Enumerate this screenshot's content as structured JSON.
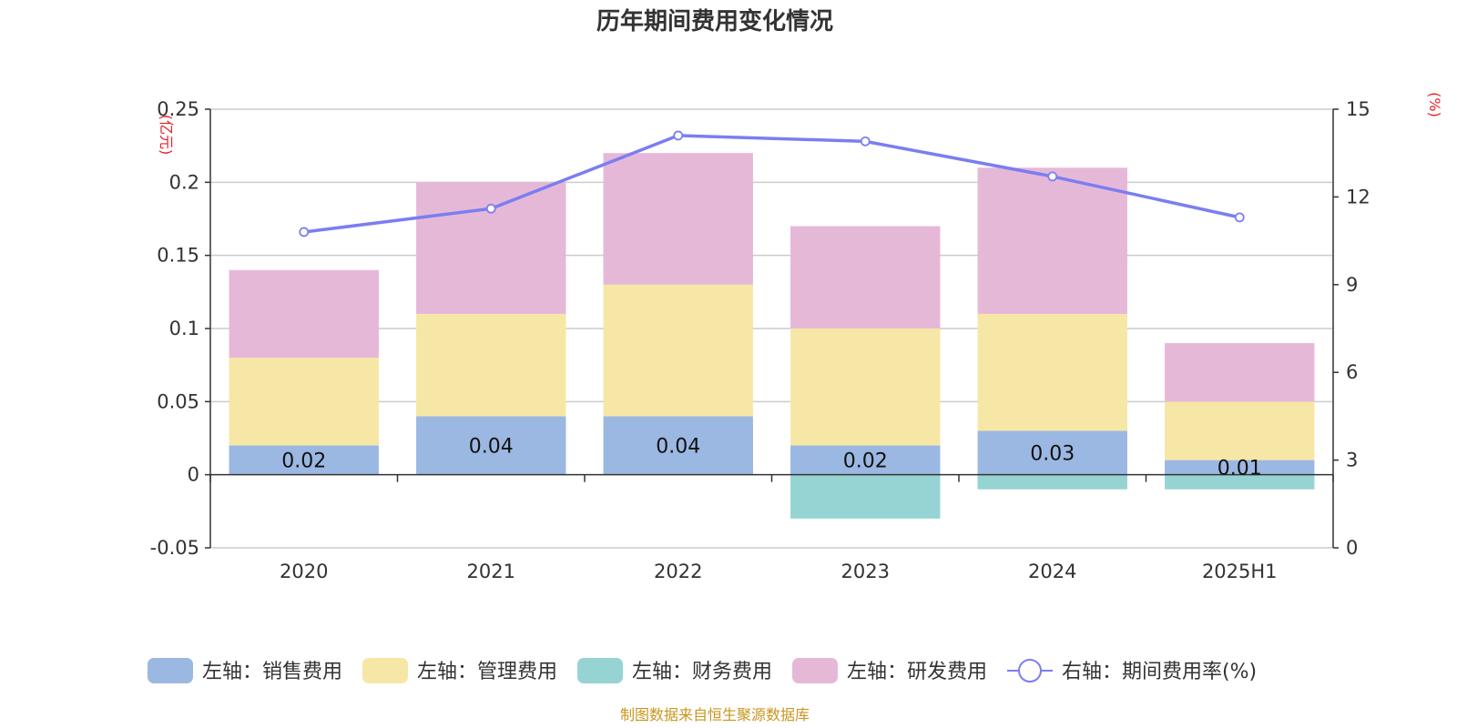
{
  "chart_data": {
    "type": "bar",
    "title": "历年期间费用变化情况",
    "left_axis_unit": "(亿元)",
    "right_axis_unit": "(%)",
    "categories": [
      "2020",
      "2021",
      "2022",
      "2023",
      "2024",
      "2025H1"
    ],
    "left_axis": {
      "ylim": [
        -0.05,
        0.25
      ],
      "tick_values": [
        -0.05,
        0,
        0.05,
        0.1,
        0.15,
        0.2,
        0.25
      ],
      "tick_labels": [
        "-0.05",
        "0",
        "0.05",
        "0.1",
        "0.15",
        "0.2",
        "0.25"
      ]
    },
    "right_axis": {
      "ylim": [
        0,
        15
      ],
      "tick_values": [
        0,
        3,
        6,
        9,
        12,
        15
      ],
      "tick_labels": [
        "0",
        "3",
        "6",
        "9",
        "12",
        "15"
      ]
    },
    "series": [
      {
        "name": "左轴：销售费用",
        "type": "bar",
        "axis": "left",
        "color": "#9bb8e2",
        "values": [
          0.02,
          0.04,
          0.04,
          0.02,
          0.03,
          0.01
        ],
        "labels": [
          "0.02",
          "0.04",
          "0.04",
          "0.02",
          "0.03",
          "0.01"
        ]
      },
      {
        "name": "左轴：管理费用",
        "type": "bar",
        "axis": "left",
        "color": "#f7e7a6",
        "values": [
          0.06,
          0.07,
          0.09,
          0.08,
          0.08,
          0.04
        ]
      },
      {
        "name": "左轴：财务费用",
        "type": "bar",
        "axis": "left",
        "color": "#96d4d4",
        "values": [
          0,
          0,
          0,
          -0.03,
          -0.01,
          -0.01
        ]
      },
      {
        "name": "左轴：研发费用",
        "type": "bar",
        "axis": "left",
        "color": "#e6b8d8",
        "values": [
          0.06,
          0.09,
          0.09,
          0.07,
          0.1,
          0.04
        ]
      },
      {
        "name": "右轴：期间费用率(%)",
        "type": "line",
        "axis": "right",
        "color": "#7b7ef0",
        "values": [
          10.8,
          11.6,
          14.1,
          13.9,
          12.7,
          11.3
        ]
      }
    ],
    "grid": true,
    "legend_position": "bottom"
  },
  "source_text": "制图数据来自恒生聚源数据库"
}
